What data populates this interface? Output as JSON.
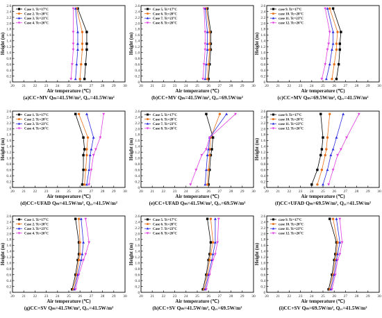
{
  "figure": {
    "yaxis_label": "Height (m)",
    "xaxis_label": "Air temperature (℃)",
    "series_colors": [
      "#000000",
      "#e8701a",
      "#2a2ae0",
      "#e040e0"
    ],
    "series_markers": [
      "square",
      "circle",
      "triangle-up",
      "triangle-down"
    ]
  },
  "chart_data": [
    {
      "type": "line",
      "caption": "(a)CC+MV Qₘ=41.5W/m², Qₑᵥ=41.5W/m²",
      "xlim": [
        20,
        30
      ],
      "ylim": [
        0,
        2.6
      ],
      "xticks": [
        "20",
        "21",
        "22",
        "23",
        "24",
        "25",
        "26",
        "27",
        "28",
        "29",
        "30"
      ],
      "yticks": [
        "0",
        "0.2",
        "0.4",
        "0.6",
        "0.8",
        "1.0",
        "1.2",
        "1.4",
        "1.6",
        "1.8",
        "2.0",
        "2.2",
        "2.4",
        "2.6"
      ],
      "x_heights": [
        0.1,
        0.6,
        1.1,
        1.3,
        1.7,
        2.5
      ],
      "series": [
        {
          "name": "Case 1.  Tc=17°C",
          "values": [
            26.4,
            26.5,
            26.6,
            26.6,
            26.6,
            25.8
          ]
        },
        {
          "name": "Case 2.  Tc=20°C",
          "values": [
            26.0,
            26.1,
            26.2,
            26.2,
            26.2,
            25.7
          ]
        },
        {
          "name": "Case 3.  Tc=23°C",
          "values": [
            25.6,
            25.7,
            25.8,
            25.8,
            25.8,
            25.6
          ]
        },
        {
          "name": "Case 4.  Tc=26°C",
          "values": [
            25.2,
            25.3,
            25.4,
            25.4,
            25.4,
            25.4
          ]
        }
      ]
    },
    {
      "type": "line",
      "caption": "(b)CC+MV Qₘ=41.5W/m², Qₑᵥ=69.5W/m²",
      "xlim": [
        20,
        30
      ],
      "ylim": [
        0,
        2.6
      ],
      "xticks": [
        "20",
        "21",
        "22",
        "23",
        "24",
        "25",
        "26",
        "27",
        "28",
        "29",
        "30"
      ],
      "yticks": [
        "0",
        "0.2",
        "0.4",
        "0.6",
        "0.8",
        "1.0",
        "1.2",
        "1.4",
        "1.6",
        "1.8",
        "2.0",
        "2.2",
        "2.4",
        "2.6"
      ],
      "x_heights": [
        0.1,
        0.6,
        1.1,
        1.3,
        1.7,
        2.5
      ],
      "series": [
        {
          "name": "Case 5.  Tc=17°C",
          "values": [
            26.0,
            26.1,
            26.2,
            26.2,
            26.2,
            25.9
          ]
        },
        {
          "name": "Case 6.  Tc=20°C",
          "values": [
            25.9,
            26.0,
            26.1,
            26.1,
            26.1,
            25.8
          ]
        },
        {
          "name": "Case 7.  Tc=23°C",
          "values": [
            25.7,
            25.8,
            25.9,
            25.9,
            25.9,
            25.7
          ]
        },
        {
          "name": "Case 8.  Tc=26°C",
          "values": [
            25.5,
            25.6,
            25.7,
            25.7,
            25.7,
            25.6
          ]
        }
      ]
    },
    {
      "type": "line",
      "caption": "(c)CC+MV Qₘ=69.5W/m², Qₑᵥ=41.5W/m²",
      "xlim": [
        20,
        30
      ],
      "ylim": [
        0,
        2.6
      ],
      "xticks": [
        "20",
        "21",
        "22",
        "23",
        "24",
        "25",
        "26",
        "27",
        "28",
        "29",
        "30"
      ],
      "yticks": [
        "0",
        "0.2",
        "0.4",
        "0.6",
        "0.8",
        "1.0",
        "1.2",
        "1.4",
        "1.6",
        "1.8",
        "2.0",
        "2.2",
        "2.4",
        "2.6"
      ],
      "x_heights": [
        0.1,
        0.6,
        1.1,
        1.3,
        1.7,
        2.5
      ],
      "series": [
        {
          "name": "case 9.  Tc=17°C",
          "values": [
            26.2,
            26.4,
            26.5,
            26.5,
            26.6,
            25.9
          ]
        },
        {
          "name": "case 10.  Tc=20°C",
          "values": [
            25.8,
            26.0,
            26.2,
            26.2,
            26.3,
            25.6
          ]
        },
        {
          "name": "case 11.  Tc=23°C",
          "values": [
            25.3,
            25.6,
            25.8,
            25.9,
            25.9,
            25.4
          ]
        },
        {
          "name": "case 12.  Tc=26°C",
          "values": [
            24.9,
            25.2,
            25.4,
            25.5,
            25.6,
            25.2
          ]
        }
      ]
    },
    {
      "type": "line",
      "caption": "(d)CC+UFAD Qₘ=41.5W/m², Qₑᵥ=41.5W/m²",
      "xlim": [
        20,
        30
      ],
      "ylim": [
        0,
        2.6
      ],
      "xticks": [
        "20",
        "21",
        "22",
        "23",
        "24",
        "25",
        "26",
        "27",
        "28",
        "29",
        "30"
      ],
      "yticks": [
        "0",
        "0.2",
        "0.4",
        "0.6",
        "0.8",
        "1.0",
        "1.2",
        "1.4",
        "1.6",
        "1.8",
        "2.0",
        "2.2",
        "2.4",
        "2.6"
      ],
      "x_heights": [
        0.1,
        0.6,
        1.1,
        1.3,
        1.7,
        2.5
      ],
      "series": [
        {
          "name": "Case 1.  Tc=17°C",
          "values": [
            26.2,
            26.3,
            26.3,
            26.4,
            26.3,
            25.6
          ]
        },
        {
          "name": "Case 2.  Tc=20°C",
          "values": [
            26.4,
            26.5,
            26.6,
            26.6,
            26.7,
            25.9
          ]
        },
        {
          "name": "Case 3.  Tc=23°C",
          "values": [
            26.6,
            26.8,
            26.9,
            27.0,
            27.2,
            26.6
          ]
        },
        {
          "name": "Case 4.  Tc=26°C",
          "values": [
            26.8,
            27.0,
            27.2,
            27.4,
            27.8,
            28.1
          ]
        }
      ]
    },
    {
      "type": "line",
      "caption": "(e)CC+UFAD Qₘ=41.5W/m², Qₑᵥ=69.5W/m²",
      "xlim": [
        20,
        30
      ],
      "ylim": [
        0,
        2.6
      ],
      "xticks": [
        "20",
        "21",
        "22",
        "23",
        "24",
        "25",
        "26",
        "27",
        "28",
        "29",
        "30"
      ],
      "yticks": [
        "0",
        "0.2",
        "0.4",
        "0.6",
        "0.8",
        "1.0",
        "1.2",
        "1.4",
        "1.6",
        "1.8",
        "2.0",
        "2.2",
        "2.4",
        "2.6"
      ],
      "x_heights": [
        0.1,
        0.6,
        1.1,
        1.3,
        1.7,
        2.5
      ],
      "series": [
        {
          "name": "Case 5.  Tc=17°C",
          "values": [
            26.0,
            26.1,
            26.2,
            26.3,
            26.4,
            25.8
          ]
        },
        {
          "name": "Case 6.  Tc=20°C",
          "values": [
            25.9,
            26.0,
            26.1,
            26.1,
            26.2,
            27.0
          ]
        },
        {
          "name": "Case 7.  Tc=23°C",
          "values": [
            25.7,
            25.8,
            25.9,
            26.0,
            26.1,
            27.6
          ]
        },
        {
          "name": "Case 8.  Tc=26°C",
          "values": [
            24.4,
            24.9,
            25.4,
            25.8,
            26.1,
            28.4
          ]
        }
      ]
    },
    {
      "type": "line",
      "caption": "(f)CC+UFAD Qₘ=69.5W/m², Qₑᵥ=41.5W/m²",
      "xlim": [
        20,
        30
      ],
      "ylim": [
        0,
        2.6
      ],
      "xticks": [
        "20",
        "21",
        "22",
        "23",
        "24",
        "25",
        "26",
        "27",
        "28",
        "29",
        "30"
      ],
      "yticks": [
        "0",
        "0.2",
        "0.4",
        "0.6",
        "0.8",
        "1.0",
        "1.2",
        "1.4",
        "1.6",
        "1.8",
        "2.0",
        "2.2",
        "2.4",
        "2.6"
      ],
      "x_heights": [
        0.1,
        0.6,
        1.1,
        1.3,
        1.7,
        2.5
      ],
      "series": [
        {
          "name": "case 9.  Tc=17°C",
          "values": [
            24.0,
            24.5,
            24.8,
            24.9,
            25.0,
            24.8
          ]
        },
        {
          "name": "case 10.  Tc=20°C",
          "values": [
            24.5,
            24.9,
            25.2,
            25.3,
            25.4,
            25.6
          ]
        },
        {
          "name": "case 11.  Tc=23°C",
          "values": [
            25.0,
            25.4,
            25.7,
            25.9,
            26.2,
            26.8
          ]
        },
        {
          "name": "case 12.  Tc=26°C",
          "values": [
            25.5,
            25.9,
            26.3,
            26.6,
            27.1,
            28.2
          ]
        }
      ]
    },
    {
      "type": "line",
      "caption": "(g)CC+SV Qₘ=41.5W/m², Qₑᵥ=41.5W/m²",
      "xlim": [
        20,
        30
      ],
      "ylim": [
        0,
        2.6
      ],
      "xticks": [
        "20",
        "21",
        "22",
        "23",
        "24",
        "25",
        "26",
        "27",
        "28",
        "29",
        "30"
      ],
      "yticks": [
        "0",
        "0.2",
        "0.4",
        "0.6",
        "0.8",
        "1.0",
        "1.2",
        "1.4",
        "1.6",
        "1.8",
        "2.0",
        "2.2",
        "2.4",
        "2.6"
      ],
      "x_heights": [
        0.1,
        0.6,
        1.1,
        1.3,
        1.7,
        2.5
      ],
      "series": [
        {
          "name": "Case 1.  Tc=17°C",
          "values": [
            25.3,
            25.6,
            25.8,
            25.9,
            25.9,
            25.6
          ]
        },
        {
          "name": "Case 2.  Tc=20°C",
          "values": [
            25.4,
            25.7,
            25.9,
            26.0,
            26.0,
            25.9
          ]
        },
        {
          "name": "Case 3.  Tc=23°C",
          "values": [
            25.5,
            25.8,
            26.1,
            26.2,
            26.3,
            26.1
          ]
        },
        {
          "name": "Case 4.  Tc=26°C",
          "values": [
            25.6,
            25.9,
            26.3,
            26.5,
            26.8,
            26.5
          ]
        }
      ]
    },
    {
      "type": "line",
      "caption": "(h)CC+SV Qₘ=41.5W/m², Qₑᵥ=69.5W/m²",
      "xlim": [
        20,
        30
      ],
      "ylim": [
        0,
        2.6
      ],
      "xticks": [
        "20",
        "21",
        "22",
        "23",
        "24",
        "25",
        "26",
        "27",
        "28",
        "29",
        "30"
      ],
      "yticks": [
        "0",
        "0.2",
        "0.4",
        "0.6",
        "0.8",
        "1.0",
        "1.2",
        "1.4",
        "1.6",
        "1.8",
        "2.0",
        "2.2",
        "2.4",
        "2.6"
      ],
      "x_heights": [
        0.1,
        0.6,
        1.1,
        1.3,
        1.7,
        2.5
      ],
      "series": [
        {
          "name": "Case 5.  Tc=17°C",
          "values": [
            25.5,
            25.8,
            26.0,
            26.1,
            26.2,
            25.9
          ]
        },
        {
          "name": "Case 6.  Tc=20°C",
          "values": [
            25.6,
            25.9,
            26.1,
            26.2,
            26.4,
            26.2
          ]
        },
        {
          "name": "Case 7.  Tc=23°C",
          "values": [
            25.7,
            26.0,
            26.3,
            26.4,
            26.6,
            26.6
          ]
        },
        {
          "name": "Case 8.  Tc=26°C",
          "values": [
            25.8,
            26.1,
            26.4,
            26.6,
            26.8,
            26.9
          ]
        }
      ]
    },
    {
      "type": "line",
      "caption": "(i)CC+SV Qₘ=69.5W/m², Qₑᵥ=41.5W/m²",
      "xlim": [
        20,
        30
      ],
      "ylim": [
        0,
        2.6
      ],
      "xticks": [
        "20",
        "21",
        "22",
        "23",
        "24",
        "25",
        "26",
        "27",
        "28",
        "29",
        "30"
      ],
      "yticks": [
        "0",
        "0.2",
        "0.4",
        "0.6",
        "0.8",
        "1.0",
        "1.2",
        "1.4",
        "1.6",
        "1.8",
        "2.0",
        "2.2",
        "2.4",
        "2.6"
      ],
      "x_heights": [
        0.1,
        0.6,
        1.1,
        1.3,
        1.7,
        2.5
      ],
      "series": [
        {
          "name": "case 9.  Tc=17°C",
          "values": [
            25.5,
            25.8,
            26.0,
            26.1,
            26.2,
            25.6
          ]
        },
        {
          "name": "case 10.  Tc=20°C",
          "values": [
            25.6,
            25.9,
            26.1,
            26.2,
            26.3,
            25.9
          ]
        },
        {
          "name": "case 11.  Tc=23°C",
          "values": [
            25.7,
            26.0,
            26.2,
            26.3,
            26.5,
            26.2
          ]
        },
        {
          "name": "case 12.  Tc=26°C",
          "values": [
            25.8,
            26.1,
            26.3,
            26.5,
            26.7,
            26.5
          ]
        }
      ]
    }
  ]
}
